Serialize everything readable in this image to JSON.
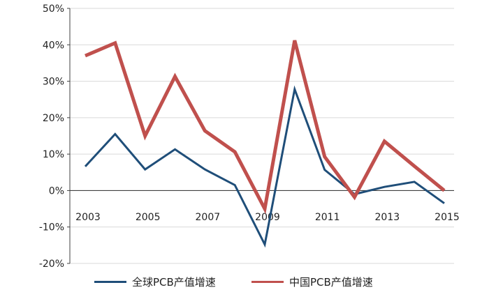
{
  "chart_data": {
    "type": "line",
    "title": "",
    "xlabel": "",
    "ylabel": "",
    "categories": [
      "2003",
      "2004",
      "2005",
      "2006",
      "2007",
      "2008",
      "2009",
      "2010",
      "2011",
      "2012",
      "2013",
      "2014",
      "2015"
    ],
    "x_tick_labels": [
      "2003",
      "2005",
      "2007",
      "2009",
      "2011",
      "2013",
      "2015"
    ],
    "y_tick_labels": [
      "50%",
      "40%",
      "30%",
      "20%",
      "10%",
      "0%",
      "-10%",
      "-20%"
    ],
    "ylim": [
      -20,
      50
    ],
    "y_ticks": [
      50,
      40,
      30,
      20,
      10,
      0,
      -10,
      -20
    ],
    "grid": true,
    "legend_position": "bottom",
    "series": [
      {
        "name": "全球PCB产值增速",
        "color": "#1f4e79",
        "values": [
          6.6,
          15.5,
          5.8,
          11.3,
          5.8,
          1.5,
          -14.8,
          27.8,
          5.7,
          -1.0,
          1.0,
          2.4,
          -3.5
        ]
      },
      {
        "name": "中国PCB产值增速",
        "color": "#c0504d",
        "values": [
          37.0,
          40.5,
          15.0,
          31.3,
          16.4,
          10.6,
          -5.0,
          41.2,
          9.3,
          -1.8,
          13.5,
          6.7,
          0.0
        ]
      }
    ]
  }
}
